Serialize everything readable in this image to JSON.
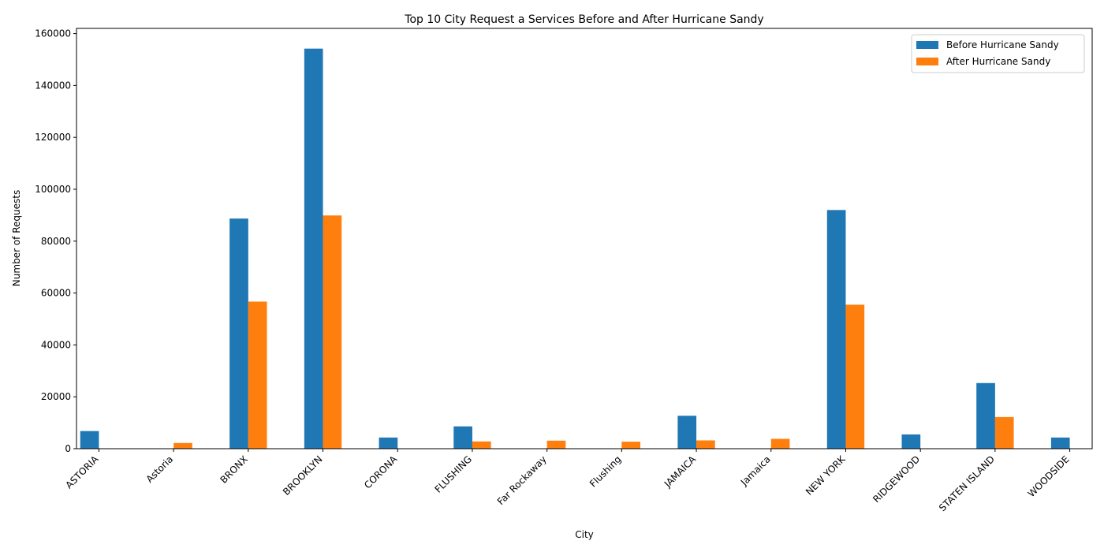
{
  "chart_data": {
    "type": "bar",
    "title": "Top 10 City Request a Services Before and After Hurricane Sandy",
    "xlabel": "City",
    "ylabel": "Number of Requests",
    "ylim": [
      0,
      162000
    ],
    "yticks": [
      0,
      20000,
      40000,
      60000,
      80000,
      100000,
      120000,
      140000,
      160000
    ],
    "legend_position": "top-right",
    "grid": false,
    "categories": [
      "ASTORIA",
      "Astoria",
      "BRONX",
      "BROOKLYN",
      "CORONA",
      "FLUSHING",
      "Far Rockaway",
      "Flushing",
      "JAMAICA",
      "Jamaica",
      "NEW YORK",
      "RIDGEWOOD",
      "STATEN ISLAND",
      "WOODSIDE"
    ],
    "series": [
      {
        "name": "Before Hurricane Sandy",
        "color": "#1f77b4",
        "values": [
          6800,
          0,
          88700,
          154200,
          4300,
          8600,
          0,
          0,
          12700,
          0,
          92000,
          5500,
          25300,
          4300
        ]
      },
      {
        "name": "After Hurricane Sandy",
        "color": "#ff7f0e",
        "values": [
          0,
          2200,
          56700,
          89900,
          0,
          2800,
          3100,
          2700,
          3200,
          3800,
          55500,
          0,
          12200,
          0
        ]
      }
    ]
  }
}
